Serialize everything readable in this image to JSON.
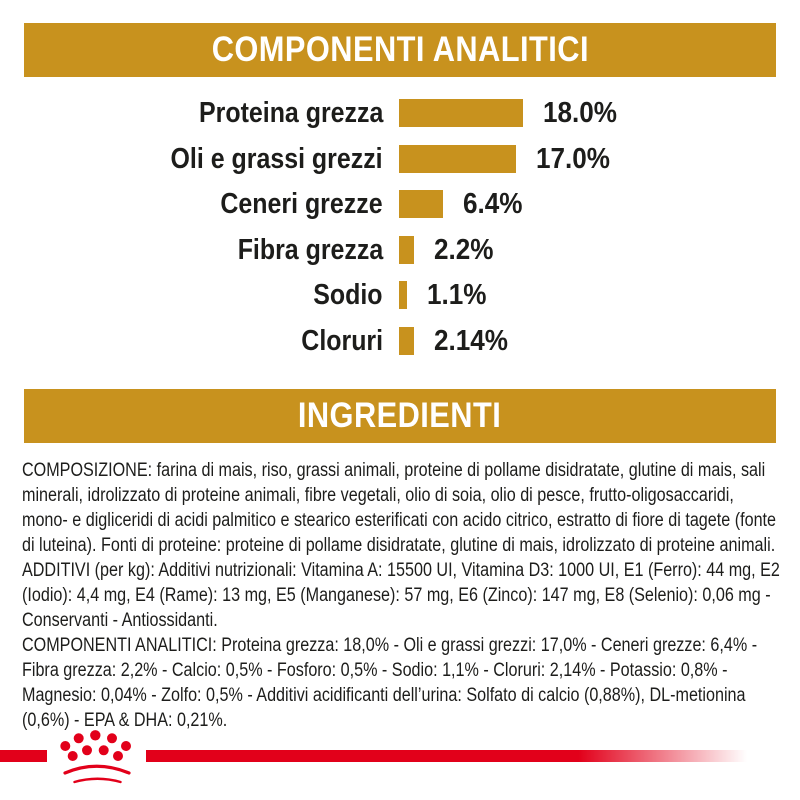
{
  "colors": {
    "page_bg": "#FFFFFF",
    "gold": "#C8921E",
    "red": "#E2001A",
    "text": "#1D1D1B",
    "header_text": "#FFFFFF"
  },
  "header_analytical": {
    "title": "COMPONENTI ANALITICI"
  },
  "header_ingredients": {
    "title": "INGREDIENTI"
  },
  "chart_data": {
    "type": "bar",
    "orientation": "horizontal",
    "title": "COMPONENTI ANALITICI",
    "categories": [
      "Proteina grezza",
      "Oli e grassi grezzi",
      "Ceneri grezze",
      "Fibra grezza",
      "Sodio",
      "Cloruri"
    ],
    "values": [
      18.0,
      17.0,
      6.4,
      2.2,
      1.1,
      2.14
    ],
    "value_labels": [
      "18.0%",
      "17.0%",
      "6.4%",
      "2.2%",
      "1.1%",
      "2.14%"
    ],
    "unit": "%",
    "xlim": [
      0,
      18
    ],
    "bar_color": "#C8921E",
    "grid": false,
    "legend": false,
    "value_label_position": "right-of-bar",
    "category_label_position": "left-of-bar"
  },
  "ingredients_text": {
    "composition": "COMPOSIZIONE: farina di mais, riso, grassi animali, proteine di pollame disidratate, glutine di mais, sali minerali, idrolizzato di proteine animali, fibre vegetali, olio di soia, olio di pesce, frutto-oligosaccaridi, mono- e digliceridi di acidi palmitico e stearico esterificati con acido citrico, estratto di fiore di tagete (fonte di luteina). Fonti di proteine: proteine di pollame disidratate, glutine di mais, idrolizzato di proteine animali.",
    "additives": "ADDITIVI (per kg): Additivi nutrizionali: Vitamina A: 15500 UI, Vitamina D3: 1000 UI, E1 (Ferro): 44 mg, E2 (Iodio): 4,4 mg, E4 (Rame): 13 mg, E5 (Manganese): 57 mg, E6 (Zinco): 147 mg, E8 (Selenio): 0,06 mg - Conservanti - Antiossidanti.",
    "analytical_components": "COMPONENTI ANALITICI: Proteina grezza: 18,0% - Oli e grassi grezzi: 17,0% - Ceneri grezze: 6,4% - Fibra grezza: 2,2% - Calcio: 0,5% - Fosforo: 0,5% - Sodio: 1,1% - Cloruri: 2,14% - Potassio: 0,8% - Magnesio: 0,04% - Zolfo: 0,5% - Additivi acidificanti dell’urina: Solfato di calcio (0,88%), DL-metionina (0,6%) - EPA & DHA: 0,21%."
  },
  "footer": {
    "logo": "royal-canin-crown-logo"
  }
}
